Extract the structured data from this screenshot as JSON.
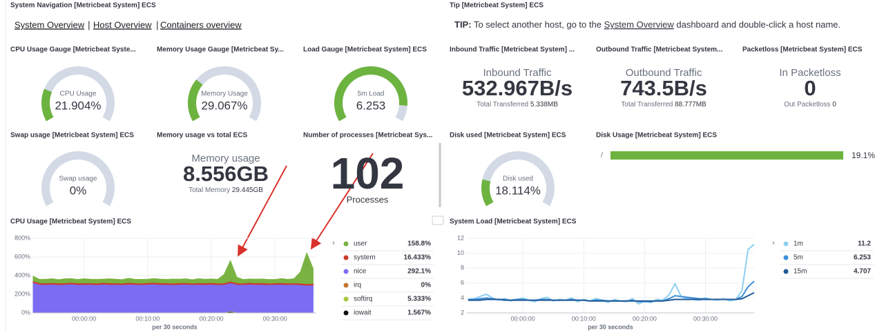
{
  "navigation": {
    "title": "System Navigation [Metricbeat System] ECS",
    "links": [
      "System Overview",
      "Host Overview",
      "Containers overview"
    ]
  },
  "tip": {
    "title": "Tip [Metricbeat System] ECS",
    "label": "TIP:",
    "text_before": "To select another host, go to the",
    "link": "System Overview",
    "text_after": "dashboard and double-click a host name."
  },
  "gauges": [
    {
      "title": "CPU Usage Gauge [Metricbeat Syste...",
      "label": "CPU Usage",
      "value": 21.904,
      "value_label": "21.904%"
    },
    {
      "title": "Memory Usage Gauge [Metricbeat Sy...",
      "label": "Memory Usage",
      "value": 29.067,
      "value_label": "29.067%"
    },
    {
      "title": "Load Gauge [Metricbeat System] ECS",
      "label": "5m Load",
      "value": 6.253
    },
    {
      "title": "Swap usage [Metricbeat System] ECS",
      "label": "Swap usage",
      "value": 0,
      "value_label": "0%"
    },
    {
      "title": "Disk used [Metricbeat System] ECS",
      "label": "Disk used",
      "value": 18.114,
      "value_label": "18.114%"
    }
  ],
  "metrics": [
    {
      "title": "Inbound Traffic [Metricbeat System] ...",
      "label": "Inbound Traffic",
      "value": "532.967B/s",
      "sub_label": "Total Transferred",
      "sub_value": "5.338MB"
    },
    {
      "title": "Outbound Traffic [Metricbeat System...",
      "label": "Outbound Traffic",
      "value": "743.5B/s",
      "sub_label": "Total Transferred",
      "sub_value": "88.777MB"
    },
    {
      "title": "Packetloss [Metricbeat System] ECS",
      "label": "In Packetloss",
      "value": "0",
      "sub_label": "Out Packetloss",
      "sub_value": "0"
    },
    {
      "title": "Memory usage vs total ECS",
      "label": "Memory usage",
      "value": "8.556GB",
      "sub_label": "Total Memory",
      "sub_value": "29.445GB"
    }
  ],
  "processes": {
    "title": "Number of processes [Metricbeat Sys...",
    "value": 102,
    "label": "Processes"
  },
  "disk_usage": {
    "title": "Disk Usage [Metricbeat System] ECS",
    "mount": "/",
    "value": 19.1,
    "value_label": "19.1%"
  },
  "chart_data": [
    {
      "type": "area",
      "title": "CPU Usage [Metricbeat System] ECS",
      "x_label": "per 30 seconds",
      "x": [
        -8,
        -7,
        -6,
        -5,
        -4,
        -3,
        -2,
        -1,
        0,
        1,
        2,
        3,
        4,
        5,
        6,
        7,
        8,
        9,
        10,
        11,
        12,
        13,
        14,
        15,
        16,
        17,
        18,
        19,
        20,
        21,
        22,
        23,
        24,
        25,
        26,
        27,
        28,
        29,
        30,
        31,
        32,
        33,
        34,
        35,
        36
      ],
      "xlim": [
        -8,
        36.5
      ],
      "xticks": [
        {
          "value": 0,
          "label": "00:00:00"
        },
        {
          "value": 10,
          "label": "00:10:00"
        },
        {
          "value": 20,
          "label": "00:20:00"
        },
        {
          "value": 30,
          "label": "00:30:00"
        }
      ],
      "ylim": [
        0,
        800
      ],
      "yticks": [
        {
          "value": 0,
          "label": "0%"
        },
        {
          "value": 200,
          "label": "200%"
        },
        {
          "value": 400,
          "label": "400%"
        },
        {
          "value": 600,
          "label": "600%"
        },
        {
          "value": 800,
          "label": "800%"
        }
      ],
      "legend_labels": [
        "158.8%",
        "16.433%",
        "292.1%",
        "0%",
        "5.333%",
        "1.567%"
      ],
      "series": [
        {
          "name": "user",
          "color": "#7ab342",
          "values": [
            50,
            38,
            40,
            42,
            36,
            44,
            40,
            38,
            45,
            39,
            41,
            37,
            43,
            40,
            38,
            46,
            39,
            41,
            37,
            42,
            40,
            38,
            44,
            39,
            41,
            37,
            43,
            40,
            38,
            42,
            90,
            220,
            60,
            40,
            38,
            42,
            39,
            41,
            37,
            44,
            40,
            45,
            120,
            330,
            158.8
          ]
        },
        {
          "name": "system",
          "color": "#cc3a2a",
          "values": [
            16,
            15,
            17,
            16,
            18,
            15,
            16,
            17,
            16,
            15,
            17,
            16,
            18,
            15,
            16,
            17,
            16,
            15,
            17,
            16,
            18,
            15,
            16,
            17,
            16,
            15,
            17,
            16,
            18,
            15,
            16,
            17,
            16,
            15,
            17,
            16,
            18,
            15,
            16,
            17,
            16,
            15,
            17,
            16,
            16.433
          ]
        },
        {
          "name": "nice",
          "color": "#7b6cf2",
          "values": [
            320,
            300,
            298,
            302,
            296,
            300,
            305,
            297,
            299,
            301,
            295,
            303,
            298,
            300,
            296,
            302,
            299,
            297,
            301,
            304,
            298,
            300,
            296,
            299,
            302,
            297,
            300,
            298,
            301,
            296,
            299,
            303,
            300,
            297,
            302,
            298,
            300,
            296,
            299,
            301,
            297,
            300,
            295,
            290,
            292.1
          ]
        },
        {
          "name": "irq",
          "color": "#c4782f",
          "values": [
            0,
            0,
            0,
            0,
            0,
            0,
            0,
            0,
            0,
            0,
            0,
            0,
            0,
            0,
            0,
            0,
            0,
            0,
            0,
            0,
            0,
            0,
            0,
            0,
            0,
            0,
            0,
            0,
            0,
            0,
            0,
            0,
            0,
            0,
            0,
            0,
            0,
            0,
            0,
            0,
            0,
            0,
            0,
            0,
            0
          ]
        },
        {
          "name": "softirq",
          "color": "#a5c63b",
          "values": [
            5,
            5,
            5,
            5,
            5,
            5,
            5,
            5,
            5,
            5,
            5,
            5,
            5,
            5,
            5,
            5,
            5,
            5,
            5,
            5,
            5,
            5,
            5,
            5,
            5,
            5,
            5,
            5,
            5,
            5,
            5,
            5,
            5,
            5,
            5,
            5,
            5,
            5,
            5,
            5,
            5,
            5,
            5,
            5,
            5.333
          ]
        },
        {
          "name": "iowait",
          "color": "#111111",
          "values": [
            1.5,
            1.5,
            1.5,
            1.5,
            1.5,
            1.5,
            1.5,
            1.5,
            1.5,
            1.5,
            1.5,
            1.5,
            1.5,
            1.5,
            1.5,
            1.5,
            1.5,
            1.5,
            1.5,
            1.5,
            1.5,
            1.5,
            1.5,
            1.5,
            1.5,
            1.5,
            1.5,
            1.5,
            1.5,
            1.5,
            1.5,
            15,
            1.5,
            1.5,
            1.5,
            1.5,
            1.5,
            1.5,
            1.5,
            1.5,
            1.5,
            1.5,
            1.5,
            1.5,
            1.567
          ]
        }
      ]
    },
    {
      "type": "line",
      "title": "System Load [Metricbeat System] ECS",
      "x_label": "per 30 seconds",
      "x": [
        -9,
        -8,
        -7,
        -6,
        -5,
        -4,
        -3,
        -2,
        -1,
        0,
        1,
        2,
        3,
        4,
        5,
        6,
        7,
        8,
        9,
        10,
        11,
        12,
        13,
        14,
        15,
        16,
        17,
        18,
        19,
        20,
        21,
        22,
        23,
        24,
        25,
        26,
        27,
        28,
        29,
        30,
        31,
        32,
        33,
        34,
        35,
        36,
        37,
        38
      ],
      "xlim": [
        -9.2,
        38
      ],
      "xticks": [
        {
          "value": 0,
          "label": "00:00:00"
        },
        {
          "value": 10,
          "label": "00:10:00"
        },
        {
          "value": 20,
          "label": "00:20:00"
        },
        {
          "value": 30,
          "label": "00:30:00"
        }
      ],
      "ylim": [
        2,
        12
      ],
      "yticks": [
        2,
        4,
        6,
        8,
        10,
        12
      ],
      "series": [
        {
          "name": "1m",
          "color": "#8ecff0",
          "values": [
            3.8,
            3.9,
            4.2,
            4.5,
            4.0,
            3.7,
            3.9,
            3.6,
            3.8,
            4.0,
            3.7,
            3.5,
            3.9,
            4.1,
            3.6,
            3.8,
            3.7,
            4.0,
            3.5,
            3.8,
            3.6,
            3.9,
            3.7,
            3.4,
            3.8,
            3.6,
            3.5,
            3.9,
            3.2,
            3.6,
            3.4,
            3.8,
            3.7,
            4.4,
            5.9,
            4.2,
            3.9,
            3.8,
            3.7,
            4.0,
            3.8,
            3.7,
            3.9,
            3.6,
            3.8,
            5.0,
            10.5,
            11.2
          ]
        },
        {
          "name": "5m",
          "color": "#3d8fd8",
          "values": [
            3.8,
            3.8,
            3.9,
            4.0,
            3.9,
            3.8,
            3.8,
            3.7,
            3.8,
            3.8,
            3.7,
            3.7,
            3.8,
            3.8,
            3.7,
            3.7,
            3.7,
            3.8,
            3.7,
            3.7,
            3.6,
            3.7,
            3.7,
            3.6,
            3.6,
            3.6,
            3.6,
            3.7,
            3.5,
            3.5,
            3.5,
            3.6,
            3.6,
            3.9,
            4.3,
            4.2,
            4.1,
            4.0,
            3.9,
            3.9,
            3.8,
            3.8,
            3.8,
            3.8,
            3.8,
            4.2,
            5.5,
            6.253
          ]
        },
        {
          "name": "15m",
          "color": "#1f5a96",
          "values": [
            3.7,
            3.7,
            3.7,
            3.8,
            3.8,
            3.8,
            3.7,
            3.7,
            3.7,
            3.7,
            3.7,
            3.7,
            3.7,
            3.7,
            3.7,
            3.7,
            3.7,
            3.7,
            3.7,
            3.7,
            3.6,
            3.6,
            3.6,
            3.6,
            3.6,
            3.6,
            3.6,
            3.6,
            3.6,
            3.6,
            3.6,
            3.6,
            3.6,
            3.7,
            3.8,
            3.8,
            3.8,
            3.8,
            3.8,
            3.8,
            3.8,
            3.8,
            3.8,
            3.8,
            3.8,
            3.9,
            4.3,
            4.707
          ]
        }
      ]
    }
  ]
}
